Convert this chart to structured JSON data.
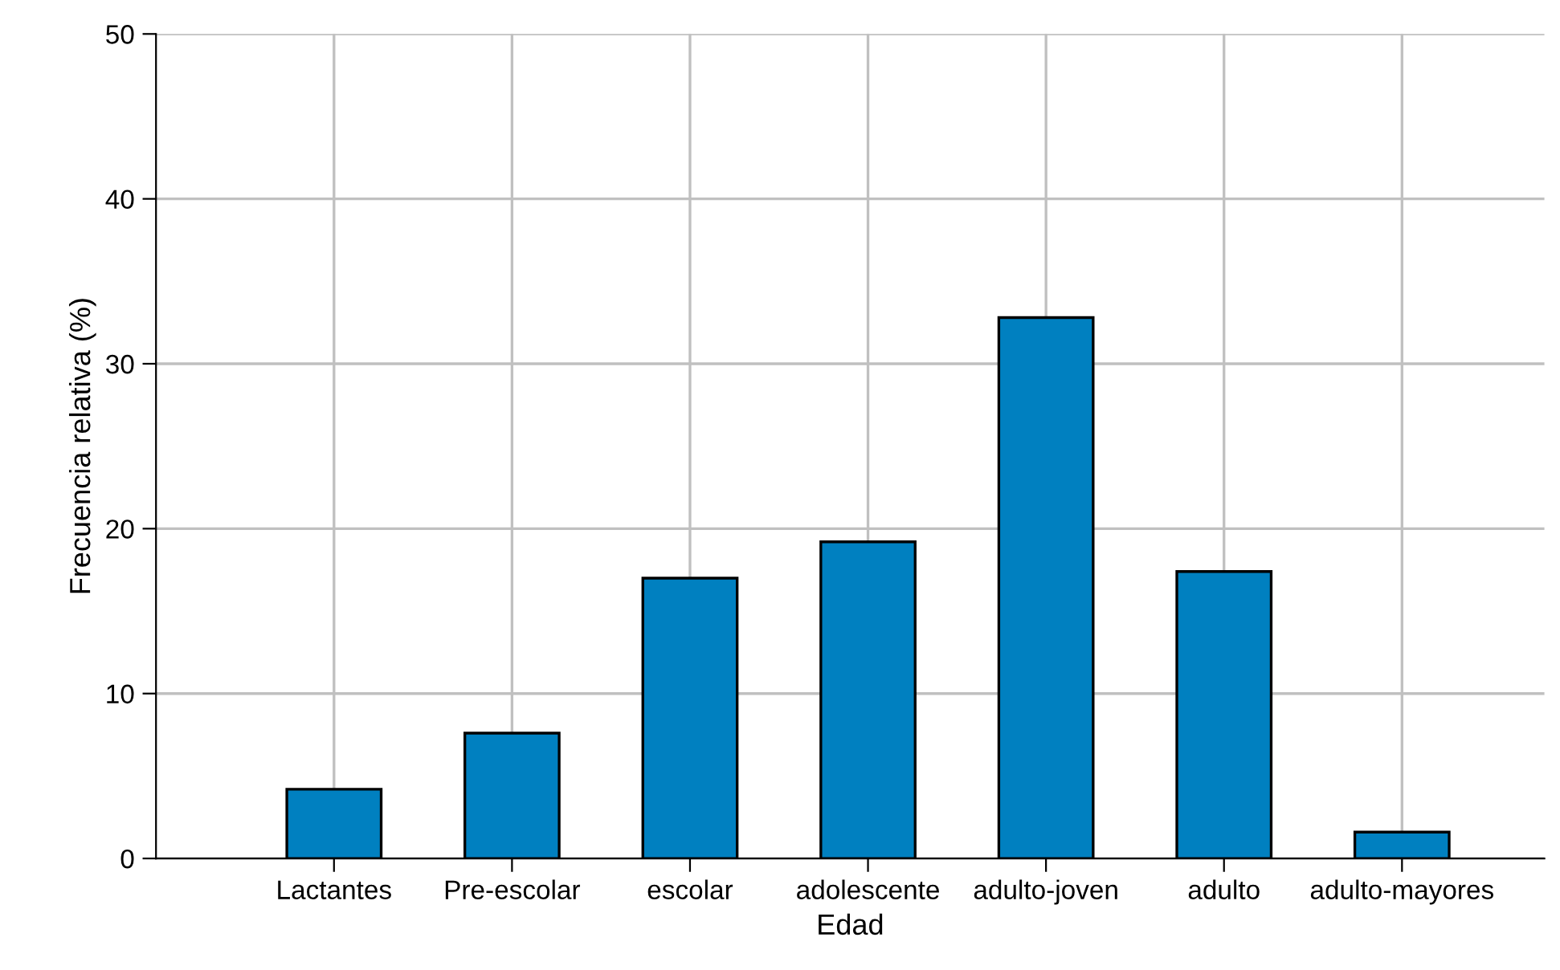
{
  "chart_data": {
    "type": "bar",
    "xlabel": "Edad",
    "ylabel": "Frecuencia relativa (%)",
    "categories": [
      "Lactantes",
      "Pre-escolar",
      "escolar",
      "adolescente",
      "adulto-joven",
      "adulto",
      "adulto-mayores"
    ],
    "values": [
      4.2,
      7.6,
      17.0,
      19.2,
      32.8,
      17.4,
      1.6
    ],
    "color": "#0080c0",
    "ylim": [
      0,
      50
    ],
    "yticks": [
      0,
      10,
      20,
      30,
      40,
      50
    ],
    "grid": true,
    "legend": false
  }
}
